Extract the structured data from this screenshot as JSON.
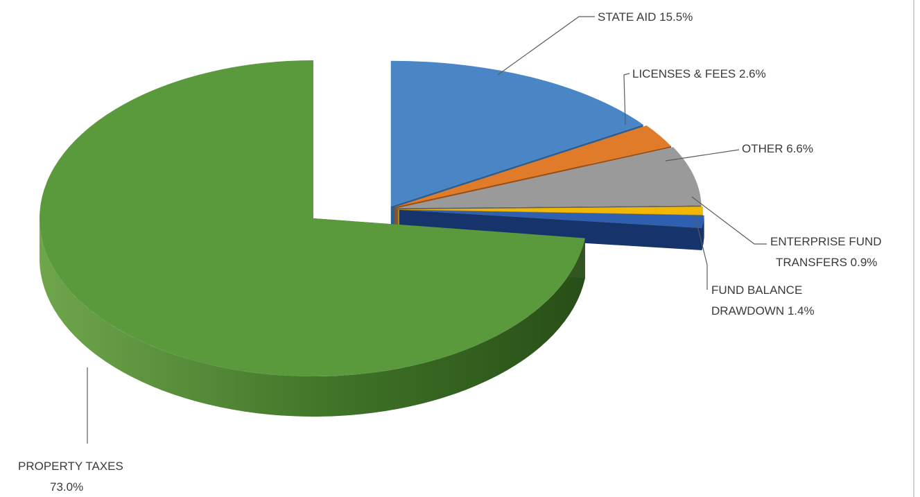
{
  "chart_data": {
    "type": "pie",
    "variant": "3d-exploded",
    "title": "",
    "series": [
      {
        "categories": [
          "PROPERTY TAXES",
          "STATE AID",
          "LICENSES & FEES",
          "OTHER",
          "ENTERPRISE FUND TRANSFERS",
          "FUND BALANCE DRAWDOWN"
        ],
        "values": [
          73.0,
          15.5,
          2.6,
          6.6,
          0.9,
          1.4
        ]
      }
    ],
    "labels": [
      {
        "lines": [
          "PROPERTY TAXES",
          "73.0%"
        ]
      },
      {
        "lines": [
          "STATE AID 15.5%"
        ]
      },
      {
        "lines": [
          "LICENSES & FEES 2.6%"
        ]
      },
      {
        "lines": [
          "OTHER 6.6%"
        ]
      },
      {
        "lines": [
          "ENTERPRISE FUND",
          "TRANSFERS 0.9%"
        ]
      },
      {
        "lines": [
          "FUND BALANCE",
          "DRAWDOWN 1.4%"
        ]
      }
    ],
    "colors": [
      "#5b9a3c",
      "#4a86c6",
      "#e07b2a",
      "#9a9a9a",
      "#f2b705",
      "#2f5fb0"
    ],
    "legend": "none"
  }
}
